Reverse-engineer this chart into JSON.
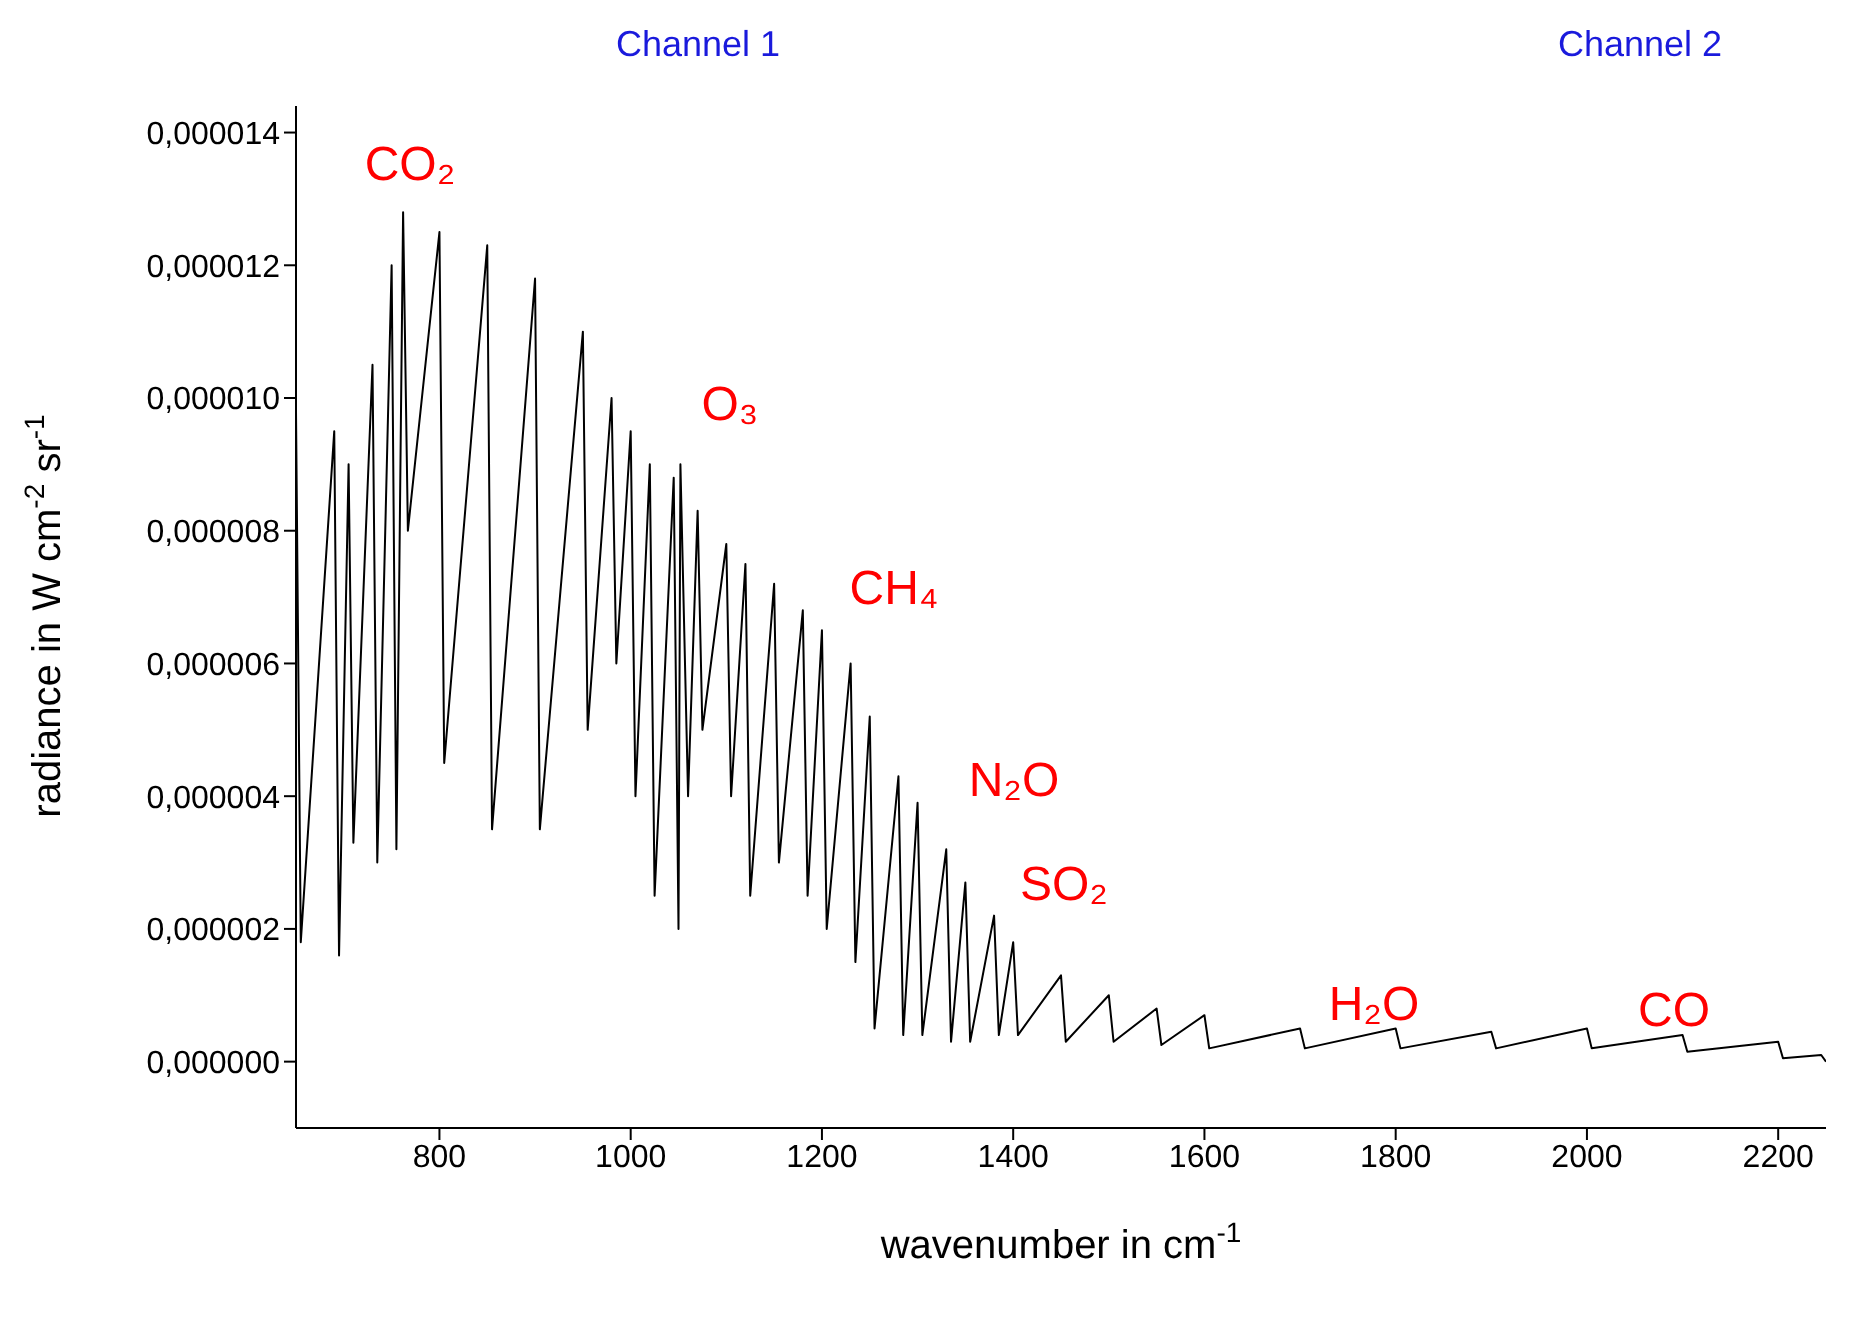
{
  "chart_data": {
    "type": "line",
    "xlabel": "wavenumber in cm$^{-1}$",
    "ylabel": "radiance in W cm$^{-2}$ sr$^{-1}$",
    "xlim": [
      650,
      2250
    ],
    "ylim": [
      -1e-06,
      1.44e-05
    ],
    "xticks": [
      800,
      1000,
      1200,
      1400,
      1600,
      1800,
      2000,
      2200
    ],
    "yticks": [
      {
        "value": 0,
        "label": "0,000000"
      },
      {
        "value": 2e-06,
        "label": "0,000002"
      },
      {
        "value": 4e-06,
        "label": "0,000004"
      },
      {
        "value": 6e-06,
        "label": "0,000006"
      },
      {
        "value": 8e-06,
        "label": "0,000008"
      },
      {
        "value": 1e-05,
        "label": "0,000010"
      },
      {
        "value": 1.2e-05,
        "label": "0,000012"
      },
      {
        "value": 1.4e-05,
        "label": "0,000014"
      }
    ],
    "grid": false,
    "legend": false,
    "marker": "none",
    "line_style": "solid",
    "series": [
      {
        "color": "#000000",
        "x": [
          650,
          655,
          690,
          695,
          705,
          710,
          730,
          735,
          750,
          755,
          762,
          767,
          800,
          805,
          850,
          855,
          900,
          905,
          950,
          955,
          980,
          985,
          1000,
          1005,
          1020,
          1025,
          1045,
          1050,
          1052,
          1060,
          1070,
          1075,
          1100,
          1105,
          1120,
          1125,
          1150,
          1155,
          1180,
          1185,
          1200,
          1205,
          1230,
          1235,
          1250,
          1255,
          1280,
          1285,
          1300,
          1305,
          1330,
          1335,
          1350,
          1355,
          1380,
          1385,
          1400,
          1405,
          1450,
          1455,
          1500,
          1505,
          1550,
          1555,
          1600,
          1605,
          1700,
          1705,
          1800,
          1805,
          1900,
          1905,
          2000,
          2005,
          2100,
          2105,
          2200,
          2205,
          2245,
          2250
        ],
        "values": [
          9.8e-06,
          1.8e-06,
          9.5e-06,
          1.6e-06,
          9e-06,
          3.3e-06,
          1.05e-05,
          3e-06,
          1.2e-05,
          3.2e-06,
          1.28e-05,
          8e-06,
          1.25e-05,
          4.5e-06,
          1.23e-05,
          3.5e-06,
          1.18e-05,
          3.5e-06,
          1.1e-05,
          5e-06,
          1e-05,
          6e-06,
          9.5e-06,
          4e-06,
          9e-06,
          2.5e-06,
          8.8e-06,
          2e-06,
          9e-06,
          4e-06,
          8.3e-06,
          5e-06,
          7.8e-06,
          4e-06,
          7.5e-06,
          2.5e-06,
          7.2e-06,
          3e-06,
          6.8e-06,
          2.5e-06,
          6.5e-06,
          2e-06,
          6e-06,
          1.5e-06,
          5.2e-06,
          5e-07,
          4.3e-06,
          4e-07,
          3.9e-06,
          4e-07,
          3.2e-06,
          3e-07,
          2.7e-06,
          3e-07,
          2.2e-06,
          4e-07,
          1.8e-06,
          4e-07,
          1.3e-06,
          3e-07,
          1e-06,
          3e-07,
          8e-07,
          2.5e-07,
          7e-07,
          2e-07,
          5e-07,
          2e-07,
          5e-07,
          2e-07,
          4.5e-07,
          2e-07,
          5e-07,
          2e-07,
          4e-07,
          1.5e-07,
          3e-07,
          5e-08,
          1e-07,
          0
        ]
      }
    ],
    "annotations": [
      "Channel 1",
      "Channel 2",
      "CO₂",
      "O₃",
      "CH₄",
      "N₂O",
      "SO₂",
      "H₂O",
      "CO"
    ]
  }
}
